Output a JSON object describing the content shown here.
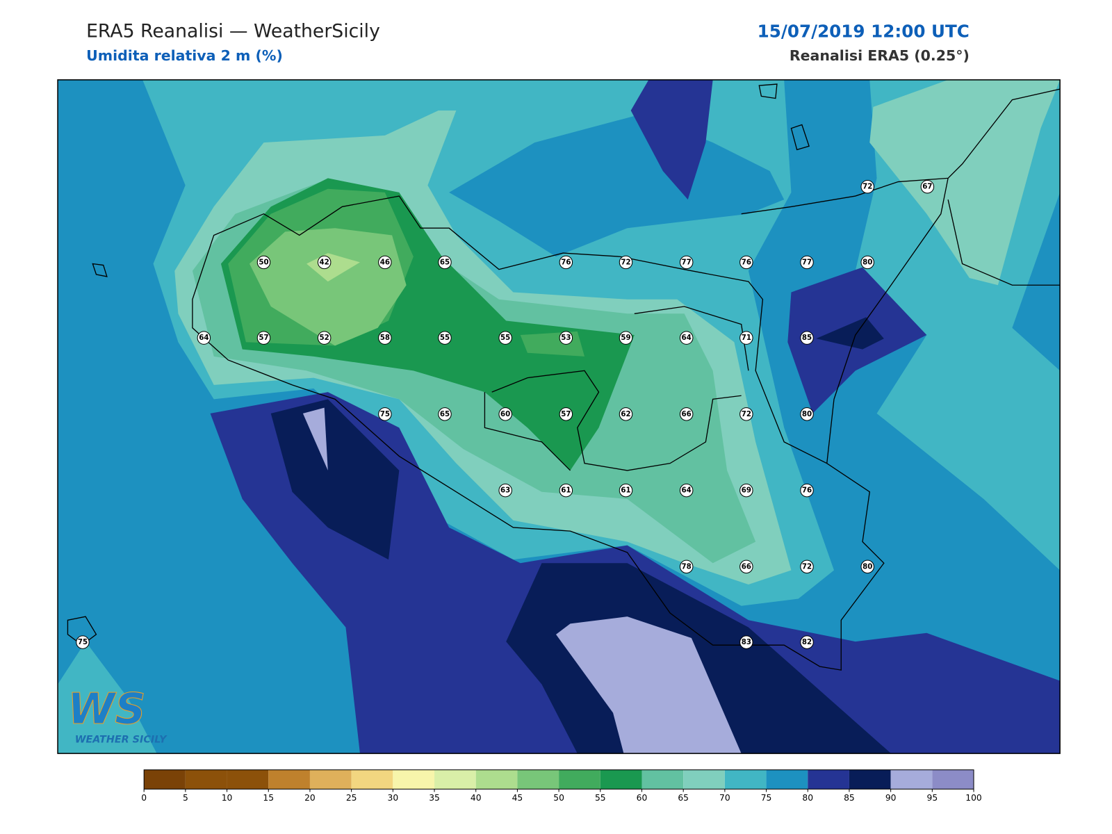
{
  "header": {
    "title": "ERA5 Reanalisi — WeatherSicily",
    "subtitle": "Umidita relativa 2 m (%)",
    "datetime": "15/07/2019 12:00 UTC",
    "source": "Reanalisi ERA5 (0.25°)"
  },
  "logo": {
    "mark": "WS",
    "name": "WEATHER SICILY"
  },
  "stations": [
    50,
    42,
    46,
    65,
    76,
    72,
    77,
    76,
    77,
    80,
    64,
    57,
    52,
    58,
    55,
    55,
    53,
    59,
    64,
    71,
    85,
    75,
    65,
    60,
    57,
    62,
    66,
    72,
    80,
    63,
    61,
    61,
    64,
    69,
    76,
    78,
    66,
    72,
    80,
    83,
    82,
    72,
    67,
    75
  ],
  "colorbar": {
    "ticks": [
      0,
      5,
      10,
      15,
      20,
      25,
      30,
      35,
      40,
      45,
      50,
      55,
      60,
      65,
      70,
      75,
      80,
      85,
      90,
      95,
      100
    ],
    "colors": [
      "#7a4207",
      "#8c510a",
      "#8c510a",
      "#bf812d",
      "#dfb05b",
      "#f2d680",
      "#f7f5ab",
      "#d9efa8",
      "#addd8e",
      "#78c679",
      "#41ab5d",
      "#1a9850",
      "#62c1a1",
      "#80cfbd",
      "#41b6c4",
      "#1d91c0",
      "#253494",
      "#081d58",
      "#a6acdb",
      "#8c8cc7"
    ]
  }
}
